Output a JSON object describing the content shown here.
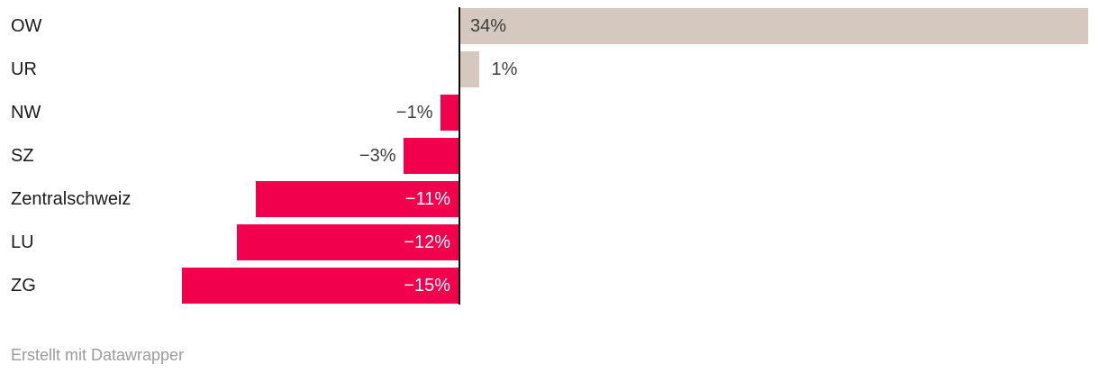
{
  "chart_data": {
    "type": "bar",
    "orientation": "horizontal",
    "unit": "%",
    "xlim": [
      -15,
      34
    ],
    "grid": false,
    "legend": "none",
    "zero_axis_color": "#0a0a0a",
    "positive_color": "#d5c9bf",
    "negative_color": "#f0004d",
    "value_label_dark_color": "#3d3d3d",
    "value_label_light_color": "#ffffff",
    "category_label_color": "#1a1a1a",
    "categories": [
      "OW",
      "UR",
      "NW",
      "SZ",
      "Zentralschweiz",
      "LU",
      "ZG"
    ],
    "values": [
      34,
      1,
      -1,
      -3,
      -11,
      -12,
      -15
    ],
    "rows": [
      {
        "category": "OW",
        "value": 34,
        "value_label": "34%",
        "value_label_placement": "inside-start"
      },
      {
        "category": "UR",
        "value": 1,
        "value_label": "1%",
        "value_label_placement": "outside-end"
      },
      {
        "category": "NW",
        "value": -1,
        "value_label": "−1%",
        "value_label_placement": "outside-end"
      },
      {
        "category": "SZ",
        "value": -3,
        "value_label": "−3%",
        "value_label_placement": "outside-end"
      },
      {
        "category": "Zentralschweiz",
        "value": -11,
        "value_label": "−11%",
        "value_label_placement": "inside-end"
      },
      {
        "category": "LU",
        "value": -12,
        "value_label": "−12%",
        "value_label_placement": "inside-end"
      },
      {
        "category": "ZG",
        "value": -15,
        "value_label": "−15%",
        "value_label_placement": "inside-end"
      }
    ]
  },
  "footer": {
    "credit": "Erstellt mit Datawrapper"
  }
}
